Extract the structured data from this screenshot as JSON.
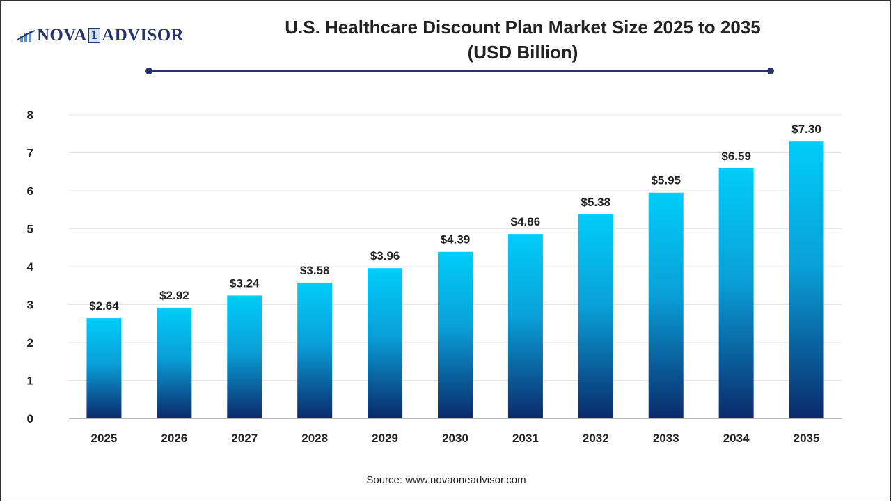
{
  "logo": {
    "text_left": "NOVA",
    "text_one": "1",
    "text_right": "ADVISOR"
  },
  "colors": {
    "bar_top": "#00cdfa",
    "bar_bottom": "#0b2a6b",
    "title_line": "#27336b",
    "grid": "#e6e6e6"
  },
  "chart_data": {
    "type": "bar",
    "title": "U.S. Healthcare Discount Plan Market Size 2025 to 2035",
    "subtitle": "(USD Billion)",
    "categories": [
      "2025",
      "2026",
      "2027",
      "2028",
      "2029",
      "2030",
      "2031",
      "2032",
      "2033",
      "2034",
      "2035"
    ],
    "values": [
      2.64,
      2.92,
      3.24,
      3.58,
      3.96,
      4.39,
      4.86,
      5.38,
      5.95,
      6.59,
      7.3
    ],
    "data_labels": [
      "$2.64",
      "$2.92",
      "$3.24",
      "$3.58",
      "$3.96",
      "$4.39",
      "$4.86",
      "$5.38",
      "$5.95",
      "$6.59",
      "$7.30"
    ],
    "ylim": [
      0,
      8
    ],
    "yticks": [
      "0",
      "1",
      "2",
      "3",
      "4",
      "5",
      "6",
      "7",
      "8"
    ],
    "xlabel": "",
    "ylabel": "",
    "grid": true,
    "legend": "none"
  },
  "source": "Source: www.novaoneadvisor.com"
}
